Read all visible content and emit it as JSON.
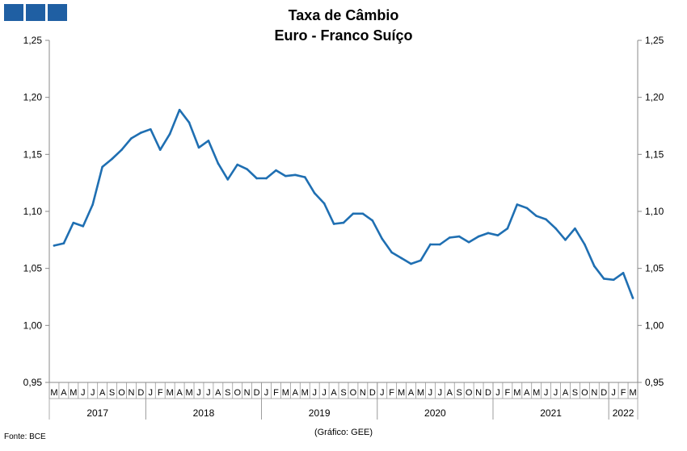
{
  "logo": {
    "squares": 3,
    "color": "#1f5fa3"
  },
  "chart_data": {
    "type": "line",
    "title": "Taxa de Câmbio",
    "subtitle": "Euro - Franco Suíço",
    "xlabel": "",
    "ylabel": "",
    "ylim": [
      0.95,
      1.25
    ],
    "yticks": [
      "0,95",
      "1,00",
      "1,05",
      "1,10",
      "1,15",
      "1,20",
      "1,25"
    ],
    "ytick_values": [
      0.95,
      1.0,
      1.05,
      1.1,
      1.15,
      1.2,
      1.25
    ],
    "grid": false,
    "legend": "none",
    "line_color": "#1f6fb2",
    "month_labels": [
      "M",
      "A",
      "M",
      "J",
      "J",
      "A",
      "S",
      "O",
      "N",
      "D",
      "J",
      "F",
      "M",
      "A",
      "M",
      "J",
      "J",
      "A",
      "S",
      "O",
      "N",
      "D",
      "J",
      "F",
      "M",
      "A",
      "M",
      "J",
      "J",
      "A",
      "S",
      "O",
      "N",
      "D",
      "J",
      "F",
      "M",
      "A",
      "M",
      "J",
      "J",
      "A",
      "S",
      "O",
      "N",
      "D",
      "J",
      "F",
      "M",
      "A",
      "M",
      "J",
      "J",
      "A",
      "S",
      "O",
      "N",
      "D",
      "J",
      "F",
      "M"
    ],
    "years": [
      {
        "label": "2017",
        "start": 0,
        "count": 10
      },
      {
        "label": "2018",
        "start": 10,
        "count": 12
      },
      {
        "label": "2019",
        "start": 22,
        "count": 12
      },
      {
        "label": "2020",
        "start": 34,
        "count": 12
      },
      {
        "label": "2021",
        "start": 46,
        "count": 12
      },
      {
        "label": "2022",
        "start": 58,
        "count": 3
      }
    ],
    "series": [
      {
        "values": [
          1.07,
          1.072,
          1.09,
          1.087,
          1.106,
          1.139,
          1.146,
          1.154,
          1.164,
          1.169,
          1.172,
          1.154,
          1.168,
          1.189,
          1.178,
          1.156,
          1.162,
          1.142,
          1.128,
          1.141,
          1.137,
          1.129,
          1.129,
          1.136,
          1.131,
          1.132,
          1.13,
          1.116,
          1.107,
          1.089,
          1.09,
          1.098,
          1.098,
          1.092,
          1.076,
          1.064,
          1.059,
          1.054,
          1.057,
          1.071,
          1.071,
          1.077,
          1.078,
          1.073,
          1.078,
          1.081,
          1.079,
          1.085,
          1.106,
          1.103,
          1.096,
          1.093,
          1.085,
          1.075,
          1.085,
          1.071,
          1.052,
          1.041,
          1.04,
          1.046,
          1.024
        ]
      }
    ]
  },
  "footer": {
    "source": "Fonte: BCE",
    "credit": "(Gráfico: GEE)"
  }
}
